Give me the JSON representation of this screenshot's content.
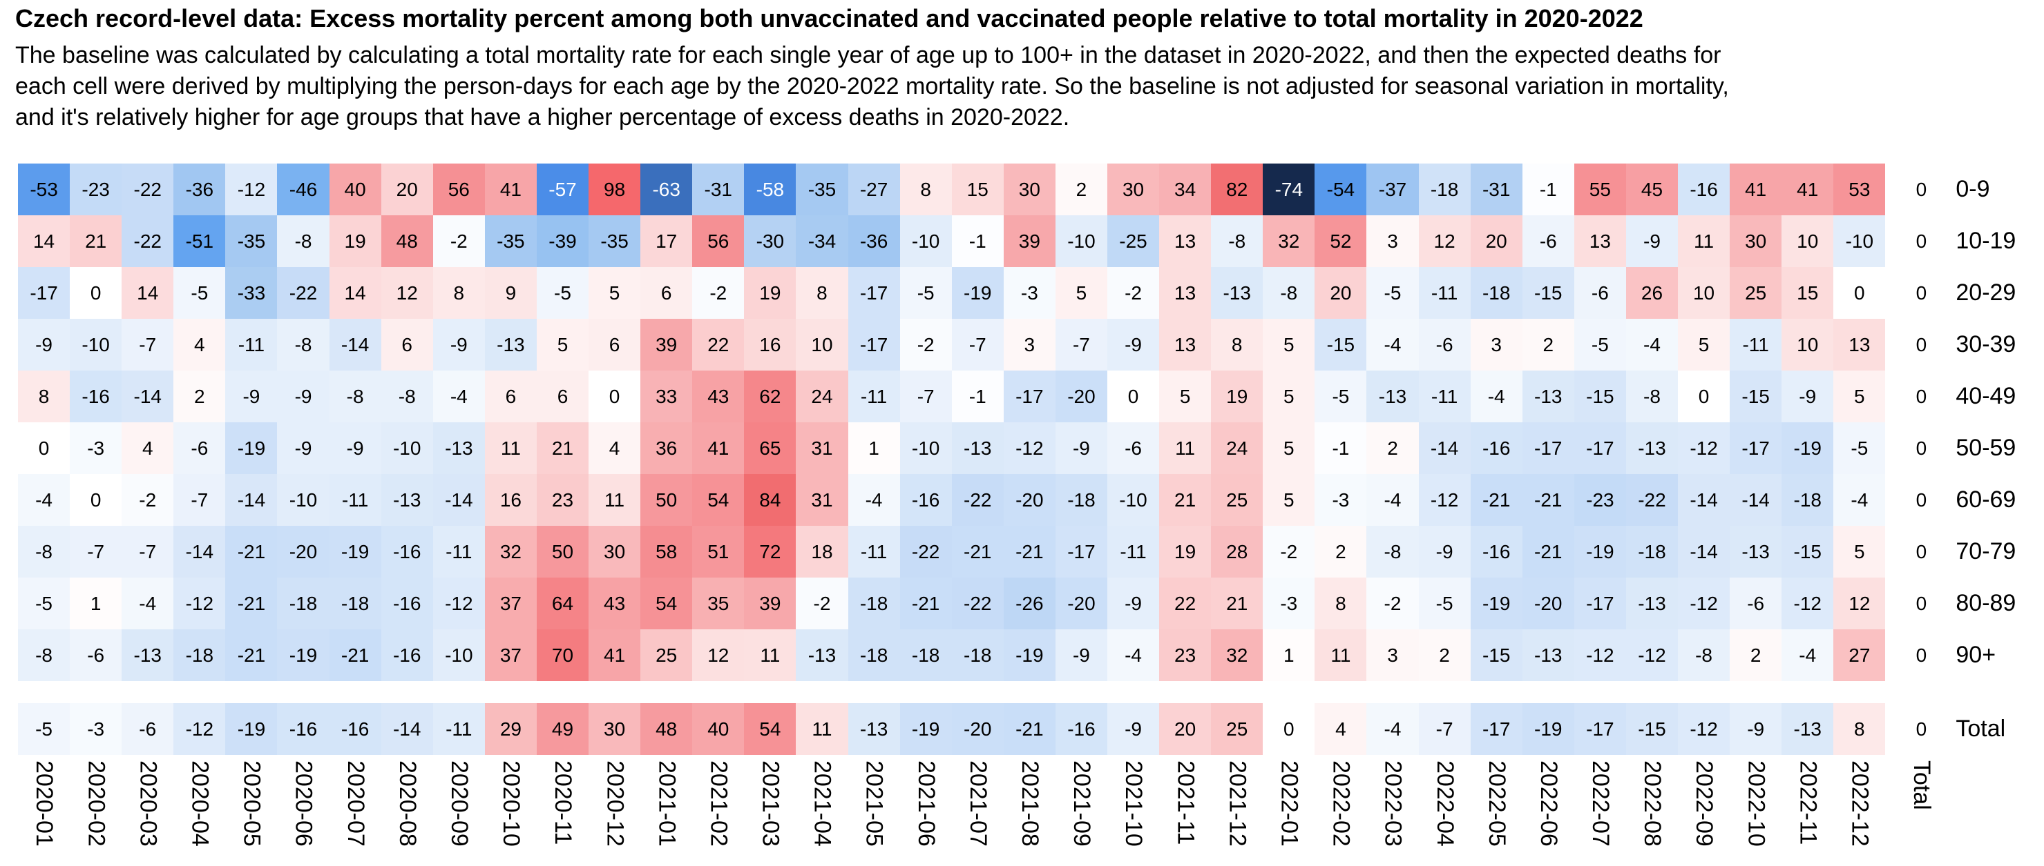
{
  "title": "Czech record-level data: Excess mortality percent among both unvaccinated and vaccinated people relative to total mortality in 2020-2022",
  "subtitle_lines": [
    "The baseline was calculated by calculating a total mortality rate for each single year of age up to 100+ in the dataset in 2020-2022, and then the expected deaths for",
    "each cell were derived by multiplying the person-days for each age by the 2020-2022 mortality rate. So the baseline is not adjusted for seasonal variation in mortality,",
    "and it's relatively higher for age groups that have a higher percentage of excess deaths in 2020-2022."
  ],
  "chart_data": {
    "type": "heatmap",
    "title": "Czech record-level data: Excess mortality percent among both unvaccinated and vaccinated people relative to total mortality in 2020-2022",
    "legend": "none",
    "grid": "off",
    "x_axis_label_rotation": "vertical-top-to-bottom",
    "y_axis_side": "right",
    "x_labels": [
      "2020-01",
      "2020-02",
      "2020-03",
      "2020-04",
      "2020-05",
      "2020-06",
      "2020-07",
      "2020-08",
      "2020-09",
      "2020-10",
      "2020-11",
      "2020-12",
      "2021-01",
      "2021-02",
      "2021-03",
      "2021-04",
      "2021-05",
      "2021-06",
      "2021-07",
      "2021-08",
      "2021-09",
      "2021-10",
      "2021-11",
      "2021-12",
      "2022-01",
      "2022-02",
      "2022-03",
      "2022-04",
      "2022-05",
      "2022-06",
      "2022-07",
      "2022-08",
      "2022-09",
      "2022-10",
      "2022-11",
      "2022-12",
      "Total"
    ],
    "rows": [
      {
        "label": "0-9",
        "values": [
          -53,
          -23,
          -22,
          -36,
          -12,
          -46,
          40,
          20,
          56,
          41,
          -57,
          98,
          -63,
          -31,
          -58,
          -35,
          -27,
          8,
          15,
          30,
          2,
          30,
          34,
          82,
          -74,
          -54,
          -37,
          -18,
          -31,
          -1,
          55,
          45,
          -16,
          41,
          41,
          53,
          0
        ]
      },
      {
        "label": "10-19",
        "values": [
          14,
          21,
          -22,
          -51,
          -35,
          -8,
          19,
          48,
          -2,
          -35,
          -39,
          -35,
          17,
          56,
          -30,
          -34,
          -36,
          -10,
          -1,
          39,
          -10,
          -25,
          13,
          -8,
          32,
          52,
          3,
          12,
          20,
          -6,
          13,
          -9,
          11,
          30,
          10,
          -10,
          0
        ]
      },
      {
        "label": "20-29",
        "values": [
          -17,
          0,
          14,
          -5,
          -33,
          -22,
          14,
          12,
          8,
          9,
          -5,
          5,
          6,
          -2,
          19,
          8,
          -17,
          -5,
          -19,
          -3,
          5,
          -2,
          13,
          -13,
          -8,
          20,
          -5,
          -11,
          -18,
          -15,
          -6,
          26,
          10,
          25,
          15,
          0,
          0
        ]
      },
      {
        "label": "30-39",
        "values": [
          -9,
          -10,
          -7,
          4,
          -11,
          -8,
          -14,
          6,
          -9,
          -13,
          5,
          6,
          39,
          22,
          16,
          10,
          -17,
          -2,
          -7,
          3,
          -7,
          -9,
          13,
          8,
          5,
          -15,
          -4,
          -6,
          3,
          2,
          -5,
          -4,
          5,
          -11,
          10,
          13,
          0
        ]
      },
      {
        "label": "40-49",
        "values": [
          8,
          -16,
          -14,
          2,
          -9,
          -9,
          -8,
          -8,
          -4,
          6,
          6,
          0,
          33,
          43,
          62,
          24,
          -11,
          -7,
          -1,
          -17,
          -20,
          0,
          5,
          19,
          5,
          -5,
          -13,
          -11,
          -4,
          -13,
          -15,
          -8,
          0,
          -15,
          -9,
          5,
          0
        ]
      },
      {
        "label": "50-59",
        "values": [
          0,
          -3,
          4,
          -6,
          -19,
          -9,
          -9,
          -10,
          -13,
          11,
          21,
          4,
          36,
          41,
          65,
          31,
          1,
          -10,
          -13,
          -12,
          -9,
          -6,
          11,
          24,
          5,
          -1,
          2,
          -14,
          -16,
          -17,
          -17,
          -13,
          -12,
          -17,
          -19,
          -5,
          0
        ]
      },
      {
        "label": "60-69",
        "values": [
          -4,
          0,
          -2,
          -7,
          -14,
          -10,
          -11,
          -13,
          -14,
          16,
          23,
          11,
          50,
          54,
          84,
          31,
          -4,
          -16,
          -22,
          -20,
          -18,
          -10,
          21,
          25,
          5,
          -3,
          -4,
          -12,
          -21,
          -21,
          -23,
          -22,
          -14,
          -14,
          -18,
          -4,
          0
        ]
      },
      {
        "label": "70-79",
        "values": [
          -8,
          -7,
          -7,
          -14,
          -21,
          -20,
          -19,
          -16,
          -11,
          32,
          50,
          30,
          58,
          51,
          72,
          18,
          -11,
          -22,
          -21,
          -21,
          -17,
          -11,
          19,
          28,
          -2,
          2,
          -8,
          -9,
          -16,
          -21,
          -19,
          -18,
          -14,
          -13,
          -15,
          5,
          0
        ]
      },
      {
        "label": "80-89",
        "values": [
          -5,
          1,
          -4,
          -12,
          -21,
          -18,
          -18,
          -16,
          -12,
          37,
          64,
          43,
          54,
          35,
          39,
          -2,
          -18,
          -21,
          -22,
          -26,
          -20,
          -9,
          22,
          21,
          -3,
          8,
          -2,
          -5,
          -19,
          -20,
          -17,
          -13,
          -12,
          -6,
          -12,
          12,
          0
        ]
      },
      {
        "label": "90+",
        "values": [
          -8,
          -6,
          -13,
          -18,
          -21,
          -19,
          -21,
          -16,
          -10,
          37,
          70,
          41,
          25,
          12,
          11,
          -13,
          -18,
          -18,
          -18,
          -19,
          -9,
          -4,
          23,
          32,
          1,
          11,
          3,
          2,
          -15,
          -13,
          -12,
          -12,
          -8,
          2,
          -4,
          27,
          0
        ]
      },
      {
        "label": "Total",
        "values": [
          -5,
          -3,
          -6,
          -12,
          -19,
          -16,
          -16,
          -14,
          -11,
          29,
          49,
          30,
          48,
          40,
          54,
          11,
          -13,
          -19,
          -20,
          -21,
          -16,
          -9,
          20,
          25,
          0,
          4,
          -4,
          -7,
          -17,
          -19,
          -17,
          -15,
          -12,
          -9,
          -13,
          8,
          0
        ]
      }
    ],
    "colormap": {
      "zero_color": "#ffffff",
      "negative_anchors": [
        [
          0,
          "#ffffff"
        ],
        [
          -10,
          "#e2edfa"
        ],
        [
          -20,
          "#cbdff8"
        ],
        [
          -30,
          "#b5d2f3"
        ],
        [
          -40,
          "#94c0f1"
        ],
        [
          -50,
          "#68a8f1"
        ],
        [
          -57,
          "#4b8de8"
        ],
        [
          -63,
          "#3a6fbd"
        ],
        [
          -74,
          "#15294d"
        ]
      ],
      "positive_anchors": [
        [
          0,
          "#ffffff"
        ],
        [
          10,
          "#fce3e3"
        ],
        [
          20,
          "#fbd2d3"
        ],
        [
          30,
          "#f9b9bb"
        ],
        [
          40,
          "#f7a6a9"
        ],
        [
          50,
          "#f6989c"
        ],
        [
          60,
          "#f58a8e"
        ],
        [
          72,
          "#f4797d"
        ],
        [
          84,
          "#f16d70"
        ],
        [
          98,
          "#f5686c"
        ]
      ],
      "white_text_at_or_below": -56
    },
    "value_range_observed": [
      -74,
      98
    ]
  }
}
